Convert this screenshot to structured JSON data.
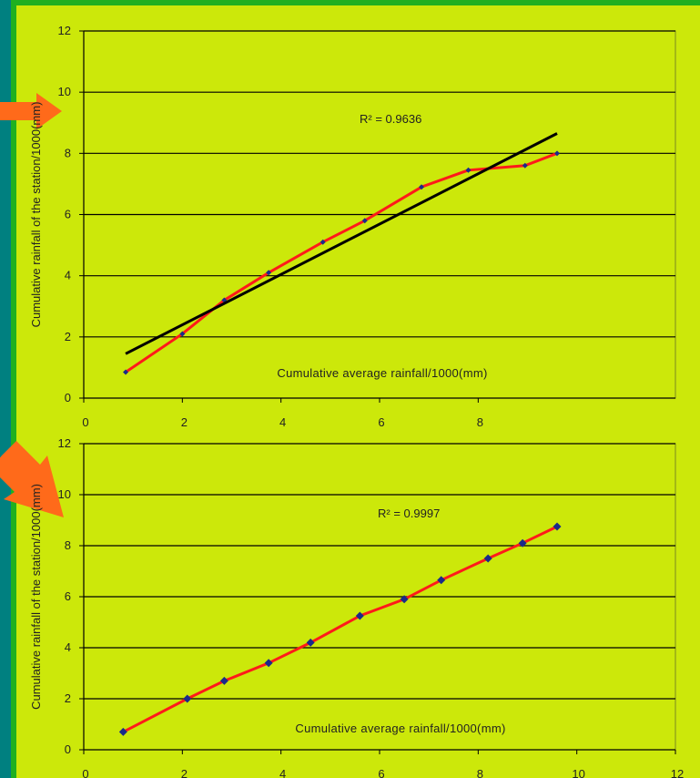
{
  "colors": {
    "page_background": "#008080",
    "outer_frame": "#20b020",
    "panel": "#cce80a",
    "gridline": "#000000",
    "series_line": "#ff1a1a",
    "trendline": "#000000",
    "marker": "#1a2a8a",
    "arrow": "#ff6a1a"
  },
  "chart_data": [
    {
      "type": "scatter",
      "title": "",
      "xlabel": "Cumulative average rainfall/1000(mm)",
      "ylabel": "Cumulative rainfall of the station/1000(mm)",
      "xlim": [
        0,
        12
      ],
      "ylim": [
        0,
        12
      ],
      "x_ticks": [
        "0",
        "2",
        "4",
        "6",
        "8"
      ],
      "y_ticks": [
        "0",
        "2",
        "4",
        "6",
        "8",
        "10",
        "12"
      ],
      "grid": "horizontal",
      "annotation": "R² = 0.9636",
      "series": [
        {
          "type": "line+markers",
          "x": [
            0.85,
            2.0,
            2.85,
            3.75,
            4.85,
            5.7,
            6.85,
            7.8,
            8.95,
            9.6
          ],
          "y": [
            0.85,
            2.1,
            3.2,
            4.1,
            5.1,
            5.8,
            6.9,
            7.45,
            7.6,
            8.0
          ]
        },
        {
          "type": "trendline",
          "x": [
            0.85,
            9.6
          ],
          "y": [
            1.45,
            8.65
          ]
        }
      ]
    },
    {
      "type": "scatter",
      "title": "",
      "xlabel": "Cumulative average rainfall/1000(mm)",
      "ylabel": "Cumulative rainfall of the station/1000(mm)",
      "xlim": [
        0,
        12
      ],
      "ylim": [
        0,
        12
      ],
      "x_ticks": [
        "0",
        "2",
        "4",
        "6",
        "8",
        "10",
        "12"
      ],
      "y_ticks": [
        "0",
        "2",
        "4",
        "6",
        "8",
        "10",
        "12"
      ],
      "grid": "horizontal",
      "annotation": "R² = 0.9997",
      "series": [
        {
          "type": "line+markers",
          "x": [
            0.8,
            2.1,
            2.85,
            3.75,
            4.6,
            5.6,
            6.5,
            7.25,
            8.2,
            8.9,
            9.6
          ],
          "y": [
            0.7,
            2.0,
            2.7,
            3.4,
            4.2,
            5.25,
            5.9,
            6.65,
            7.5,
            8.1,
            8.75
          ]
        }
      ]
    }
  ]
}
